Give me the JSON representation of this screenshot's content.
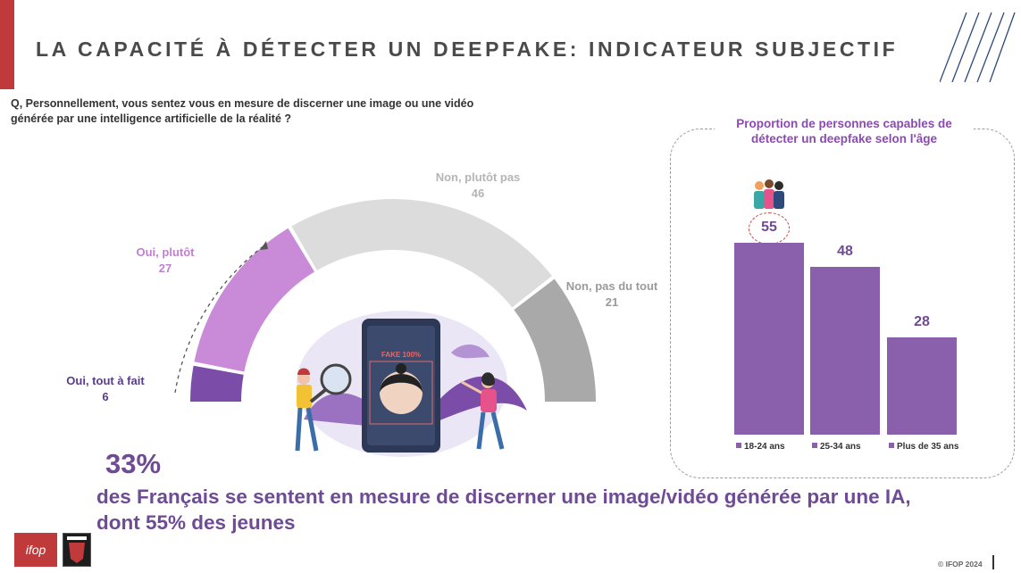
{
  "title": "LA CAPACITÉ À DÉTECTER UN DEEPFAKE: INDICATEUR SUBJECTIF",
  "question": "Q, Personnellement, vous sentez vous en mesure de discerner une image ou une vidéo générée par une intelligence artificielle de la réalité ?",
  "phone_badge": "FAKE 100%",
  "colors": {
    "accent_red": "#c0393b",
    "dark_purple": "#7b4ca8",
    "light_purple": "#c98ad8",
    "light_gray": "#dcdcdc",
    "mid_gray": "#a9a9a9",
    "bar_purple": "#8a5fac",
    "headline_purple": "#6e4b94"
  },
  "chart_data": [
    {
      "type": "pie",
      "categories": [
        "Oui, tout à fait",
        "Oui, plutôt",
        "Non, plutôt pas",
        "Non, pas du tout"
      ],
      "values": [
        6,
        27,
        46,
        21
      ]
    },
    {
      "type": "bar",
      "title": "Proportion de personnes capables de détecter un deepfake selon l'âge",
      "categories": [
        "18-24 ans",
        "25-34 ans",
        "Plus de 35 ans"
      ],
      "values": [
        55,
        48,
        28
      ],
      "legend": "bottom"
    }
  ],
  "headline": {
    "percent": "33%",
    "text": "des Français se sentent en mesure de discerner une image/vidéo générée par une IA, dont 55% des jeunes"
  },
  "logos": {
    "ifop": "ifop"
  },
  "copyright": "© IFOP 2024"
}
